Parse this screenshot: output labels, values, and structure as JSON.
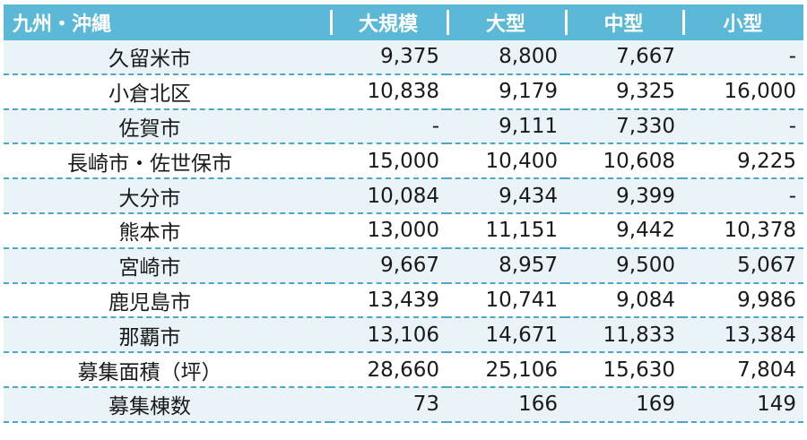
{
  "table": {
    "headers": [
      "九州・沖縄",
      "大規模",
      "大型",
      "中型",
      "小型"
    ],
    "rows": [
      {
        "name": "久留米市",
        "values": [
          "9,375",
          "8,800",
          "7,667",
          "-"
        ]
      },
      {
        "name": "小倉北区",
        "values": [
          "10,838",
          "9,179",
          "9,325",
          "16,000"
        ]
      },
      {
        "name": "佐賀市",
        "values": [
          "-",
          "9,111",
          "7,330",
          "-"
        ]
      },
      {
        "name": "長崎市・佐世保市",
        "values": [
          "15,000",
          "10,400",
          "10,608",
          "9,225"
        ]
      },
      {
        "name": "大分市",
        "values": [
          "10,084",
          "9,434",
          "9,399",
          "-"
        ]
      },
      {
        "name": "熊本市",
        "values": [
          "13,000",
          "11,151",
          "9,442",
          "10,378"
        ]
      },
      {
        "name": "宮崎市",
        "values": [
          "9,667",
          "8,957",
          "9,500",
          "5,067"
        ]
      },
      {
        "name": "鹿児島市",
        "values": [
          "13,439",
          "10,741",
          "9,084",
          "9,986"
        ]
      },
      {
        "name": "那覇市",
        "values": [
          "13,106",
          "14,671",
          "11,833",
          "13,384"
        ]
      },
      {
        "name": "募集面積（坪）",
        "values": [
          "28,660",
          "25,106",
          "15,630",
          "7,804"
        ]
      },
      {
        "name": "募集棟数",
        "values": [
          "73",
          "166",
          "169",
          "149"
        ]
      }
    ]
  },
  "colors": {
    "header_bg": "#5bb8d6",
    "row_stripe": "#eaf3f8",
    "divider": "#4aa8c8"
  }
}
